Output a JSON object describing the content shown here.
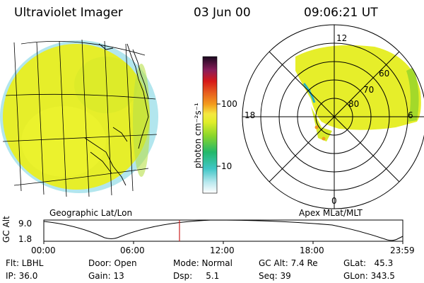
{
  "header": {
    "instrument": "Ultraviolet Imager",
    "date": "03 Jun 00",
    "time": "09:06:21 UT"
  },
  "colorbar": {
    "unit_label": "photon cm⁻²s⁻¹",
    "ticks": [
      "100",
      "10"
    ]
  },
  "left_panel": {
    "label": "Geographic Lat/Lon"
  },
  "right_panel": {
    "label": "Apex MLat/MLT",
    "mlt_labels": {
      "top": "12",
      "left": "18",
      "right": "6",
      "bottom": "0"
    },
    "lat_labels": [
      "60",
      "70",
      "80"
    ]
  },
  "altitude_plot": {
    "y_label": "GC Alt",
    "y_ticks": [
      "9.0",
      "1.8"
    ],
    "x_ticks": [
      "00:00",
      "06:00",
      "12:00",
      "18:00",
      "23:59"
    ],
    "cursor_time": "09:06"
  },
  "footer": {
    "flt": "Flt: LBHL",
    "ip": "IP: 36.0",
    "door": "Door: Open",
    "gain": "Gain: 13",
    "mode": "Mode: Normal",
    "dsp": "Dsp:     5.1",
    "gc_alt": "GC Alt: 7.4 Re",
    "seq": "Seq: 39",
    "glat": "GLat:   45.3",
    "glon": "GLon: 343.5"
  },
  "colors": {
    "aurora_main": "#e6ee2a",
    "aurora_green": "#9bd62a",
    "edge_cyan": "#9fe0ea",
    "cursor": "#cc2222"
  }
}
